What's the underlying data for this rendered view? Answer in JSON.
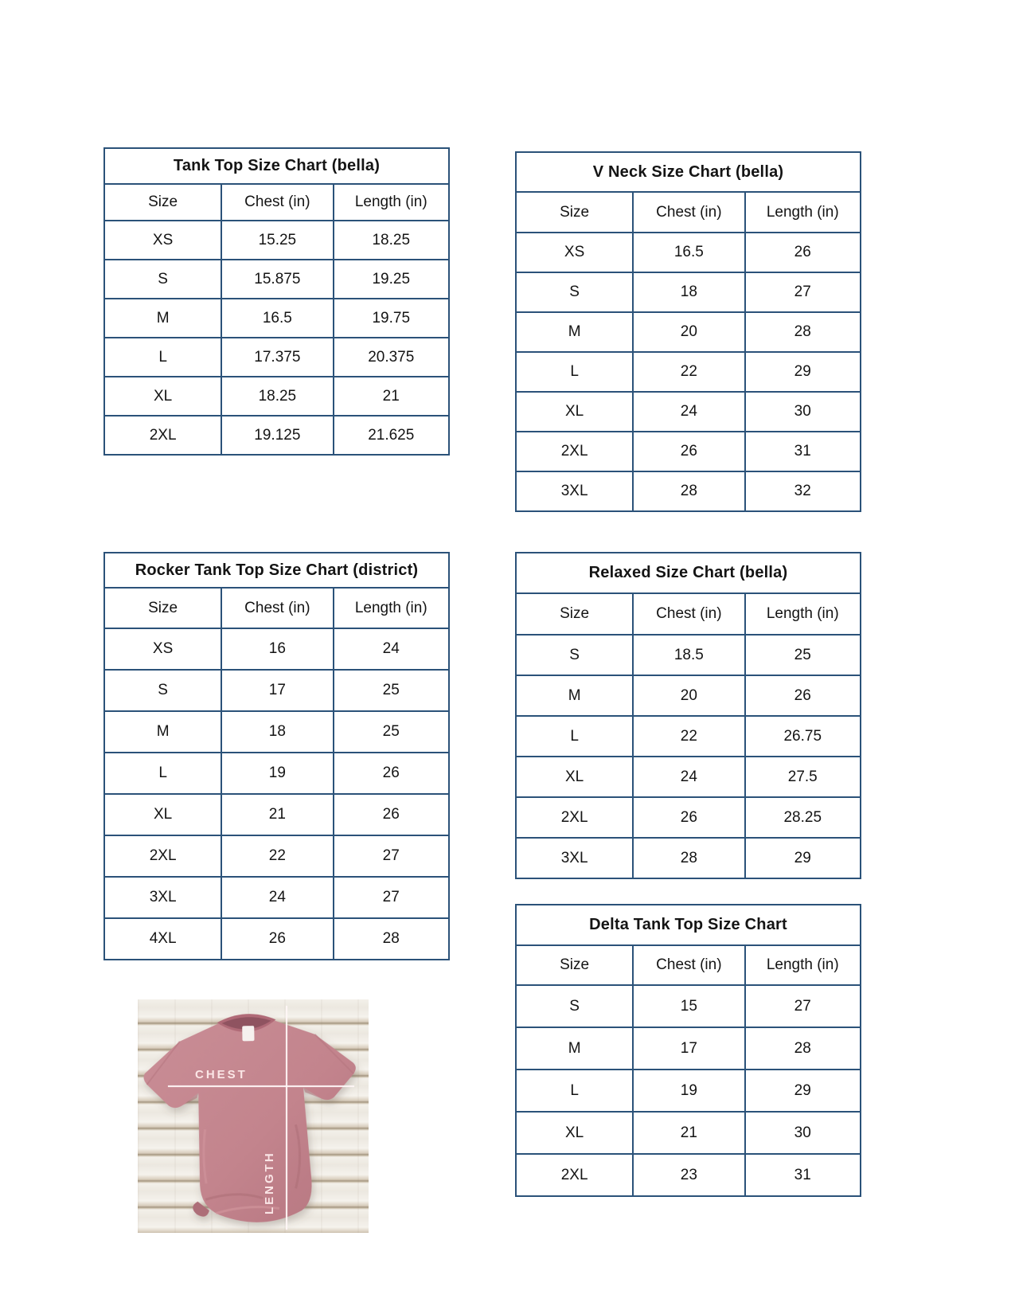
{
  "page": {
    "background": "#ffffff",
    "table_border_color": "#2b5279",
    "text_color": "#141414"
  },
  "tables": [
    {
      "name": "tank-top-bella",
      "title": "Tank Top Size Chart  (bella)",
      "columns": [
        "Size",
        "Chest (in)",
        "Length (in)"
      ],
      "rows": [
        [
          "XS",
          "15.25",
          "18.25"
        ],
        [
          "S",
          "15.875",
          "19.25"
        ],
        [
          "M",
          "16.5",
          "19.75"
        ],
        [
          "L",
          "17.375",
          "20.375"
        ],
        [
          "XL",
          "18.25",
          "21"
        ],
        [
          "2XL",
          "19.125",
          "21.625"
        ]
      ]
    },
    {
      "name": "v-neck-bella",
      "title": "V Neck Size Chart  (bella)",
      "columns": [
        "Size",
        "Chest (in)",
        "Length (in)"
      ],
      "rows": [
        [
          "XS",
          "16.5",
          "26"
        ],
        [
          "S",
          "18",
          "27"
        ],
        [
          "M",
          "20",
          "28"
        ],
        [
          "L",
          "22",
          "29"
        ],
        [
          "XL",
          "24",
          "30"
        ],
        [
          "2XL",
          "26",
          "31"
        ],
        [
          "3XL",
          "28",
          "32"
        ]
      ]
    },
    {
      "name": "rocker-tank-top-district",
      "title": "Rocker Tank Top Size Chart (district)",
      "columns": [
        "Size",
        "Chest (in)",
        "Length (in)"
      ],
      "rows": [
        [
          "XS",
          "16",
          "24"
        ],
        [
          "S",
          "17",
          "25"
        ],
        [
          "M",
          "18",
          "25"
        ],
        [
          "L",
          "19",
          "26"
        ],
        [
          "XL",
          "21",
          "26"
        ],
        [
          "2XL",
          "22",
          "27"
        ],
        [
          "3XL",
          "24",
          "27"
        ],
        [
          "4XL",
          "26",
          "28"
        ]
      ]
    },
    {
      "name": "relaxed-bella",
      "title": "Relaxed Size Chart (bella)",
      "columns": [
        "Size",
        "Chest (in)",
        "Length (in)"
      ],
      "rows": [
        [
          "S",
          "18.5",
          "25"
        ],
        [
          "M",
          "20",
          "26"
        ],
        [
          "L",
          "22",
          "26.75"
        ],
        [
          "XL",
          "24",
          "27.5"
        ],
        [
          "2XL",
          "26",
          "28.25"
        ],
        [
          "3XL",
          "28",
          "29"
        ]
      ]
    },
    {
      "name": "delta-tank-top",
      "title": "Delta Tank Top Size Chart",
      "columns": [
        "Size",
        "Chest (in)",
        "Length (in)"
      ],
      "rows": [
        [
          "S",
          "15",
          "27"
        ],
        [
          "M",
          "17",
          "28"
        ],
        [
          "L",
          "19",
          "29"
        ],
        [
          "XL",
          "21",
          "30"
        ],
        [
          "2XL",
          "23",
          "31"
        ]
      ]
    }
  ],
  "photo": {
    "chest_label": "CHEST",
    "length_label": "LENGTH",
    "shirt_color": "#c3848d",
    "line_color": "#fff6f6"
  }
}
